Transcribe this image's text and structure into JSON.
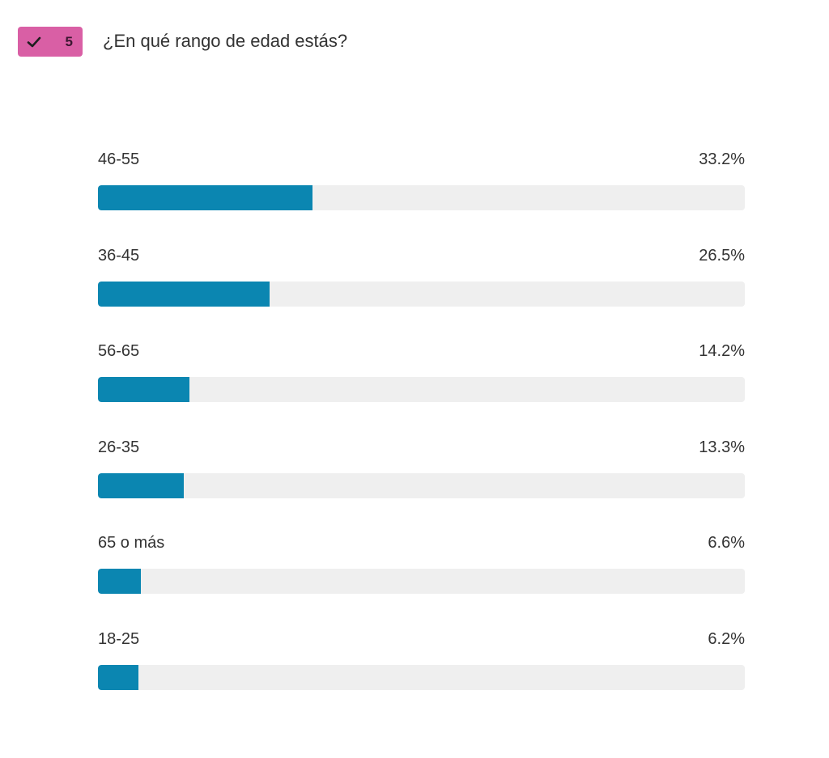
{
  "header": {
    "badge_number": "5",
    "question": "¿En qué rango de edad estás?"
  },
  "colors": {
    "badge": "#d95fa5",
    "bar_fill": "#0b86b1",
    "bar_track": "#efefef"
  },
  "chart_data": {
    "type": "bar",
    "orientation": "horizontal",
    "categories": [
      "46-55",
      "36-45",
      "56-65",
      "26-35",
      "65 o más",
      "18-25"
    ],
    "values": [
      33.2,
      26.5,
      14.2,
      13.3,
      6.6,
      6.2
    ],
    "value_labels": [
      "33.2%",
      "26.5%",
      "14.2%",
      "13.3%",
      "6.6%",
      "6.2%"
    ],
    "xlim": [
      0,
      100
    ],
    "unit": "%",
    "title": "¿En qué rango de edad estás?"
  }
}
